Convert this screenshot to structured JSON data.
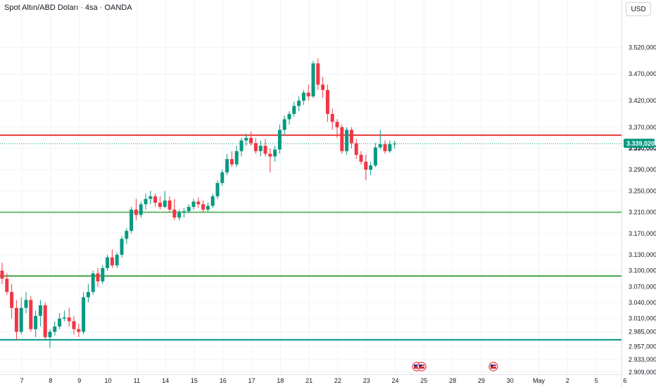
{
  "header": {
    "symbol_title": "Spot Altın/ABD Doları · 4sa · OANDA",
    "currency_button": "USD"
  },
  "colors": {
    "up": "#089981",
    "down": "#f23645",
    "resistance": "#e53935",
    "support_light": "#66bb6a",
    "support_mid": "#43a047",
    "support_dark": "#009688",
    "last_price": "#089981",
    "grid": "#f0f3fa"
  },
  "chart_data": {
    "type": "candlestick",
    "ylim": [
      2909,
      3559
    ],
    "y_axis_ticks": [
      {
        "value": 3520,
        "label": "3.520,000"
      },
      {
        "value": 3470,
        "label": "3.470,000"
      },
      {
        "value": 3420,
        "label": "3.420,000"
      },
      {
        "value": 3370,
        "label": "3.370,000"
      },
      {
        "value": 3330,
        "label": "3.330,000"
      },
      {
        "value": 3290,
        "label": "3.290,000"
      },
      {
        "value": 3250,
        "label": "3.250,000"
      },
      {
        "value": 3210,
        "label": "3.210,000"
      },
      {
        "value": 3170,
        "label": "3.170,000"
      },
      {
        "value": 3130,
        "label": "3.130,000"
      },
      {
        "value": 3100,
        "label": "3.100,000"
      },
      {
        "value": 3070,
        "label": "3.070,000"
      },
      {
        "value": 3040,
        "label": "3.040,000"
      },
      {
        "value": 3010,
        "label": "3.010,000"
      },
      {
        "value": 2985,
        "label": "2.985,000"
      },
      {
        "value": 2957,
        "label": "2.957,000"
      },
      {
        "value": 2933,
        "label": "2.933,000"
      },
      {
        "value": 2909,
        "label": "2.909,000"
      }
    ],
    "x_axis_labels": [
      {
        "bar": 4.5,
        "label": "7"
      },
      {
        "bar": 10.5,
        "label": "8"
      },
      {
        "bar": 16.5,
        "label": "9"
      },
      {
        "bar": 22.5,
        "label": "10"
      },
      {
        "bar": 28.5,
        "label": "11"
      },
      {
        "bar": 34.5,
        "label": "14"
      },
      {
        "bar": 40.5,
        "label": "15"
      },
      {
        "bar": 46.5,
        "label": "16"
      },
      {
        "bar": 52.5,
        "label": "17"
      },
      {
        "bar": 58.5,
        "label": "18"
      },
      {
        "bar": 64.5,
        "label": "21"
      },
      {
        "bar": 70.5,
        "label": "22"
      },
      {
        "bar": 76.5,
        "label": "23"
      },
      {
        "bar": 82.5,
        "label": "24"
      },
      {
        "bar": 88.5,
        "label": "25"
      },
      {
        "bar": 94.5,
        "label": "28"
      },
      {
        "bar": 100.5,
        "label": "29"
      },
      {
        "bar": 106.5,
        "label": "30"
      },
      {
        "bar": 112.5,
        "label": "May"
      },
      {
        "bar": 118.5,
        "label": "2"
      },
      {
        "bar": 124.5,
        "label": "5"
      },
      {
        "bar": 130.5,
        "label": "6"
      }
    ],
    "candles": [
      {
        "o": 3100,
        "h": 3115,
        "l": 3075,
        "c": 3085
      },
      {
        "o": 3085,
        "h": 3095,
        "l": 3055,
        "c": 3060
      },
      {
        "o": 3060,
        "h": 3075,
        "l": 3010,
        "c": 3030
      },
      {
        "o": 3030,
        "h": 3045,
        "l": 2970,
        "c": 2985
      },
      {
        "o": 2985,
        "h": 3050,
        "l": 2980,
        "c": 3030
      },
      {
        "o": 3030,
        "h": 3060,
        "l": 3020,
        "c": 3045
      },
      {
        "o": 3045,
        "h": 3052,
        "l": 2985,
        "c": 2990
      },
      {
        "o": 2990,
        "h": 3025,
        "l": 2975,
        "c": 3015
      },
      {
        "o": 3015,
        "h": 3045,
        "l": 2995,
        "c": 3035
      },
      {
        "o": 3035,
        "h": 3040,
        "l": 2970,
        "c": 2975
      },
      {
        "o": 2975,
        "h": 2990,
        "l": 2955,
        "c": 2985
      },
      {
        "o": 2985,
        "h": 3005,
        "l": 2978,
        "c": 2995
      },
      {
        "o": 2995,
        "h": 3020,
        "l": 2990,
        "c": 3010
      },
      {
        "o": 3010,
        "h": 3025,
        "l": 3005,
        "c": 3012
      },
      {
        "o": 3012,
        "h": 3030,
        "l": 2995,
        "c": 3005
      },
      {
        "o": 3005,
        "h": 3015,
        "l": 2980,
        "c": 2990
      },
      {
        "o": 2990,
        "h": 3000,
        "l": 2975,
        "c": 2985
      },
      {
        "o": 2985,
        "h": 3060,
        "l": 2980,
        "c": 3050
      },
      {
        "o": 3050,
        "h": 3075,
        "l": 3040,
        "c": 3060
      },
      {
        "o": 3060,
        "h": 3100,
        "l": 3055,
        "c": 3095
      },
      {
        "o": 3095,
        "h": 3105,
        "l": 3070,
        "c": 3080
      },
      {
        "o": 3080,
        "h": 3110,
        "l": 3075,
        "c": 3105
      },
      {
        "o": 3105,
        "h": 3130,
        "l": 3100,
        "c": 3125
      },
      {
        "o": 3125,
        "h": 3140,
        "l": 3105,
        "c": 3110
      },
      {
        "o": 3110,
        "h": 3135,
        "l": 3105,
        "c": 3130
      },
      {
        "o": 3130,
        "h": 3165,
        "l": 3125,
        "c": 3160
      },
      {
        "o": 3160,
        "h": 3180,
        "l": 3150,
        "c": 3175
      },
      {
        "o": 3175,
        "h": 3220,
        "l": 3170,
        "c": 3215
      },
      {
        "o": 3215,
        "h": 3235,
        "l": 3195,
        "c": 3205
      },
      {
        "o": 3205,
        "h": 3230,
        "l": 3200,
        "c": 3225
      },
      {
        "o": 3225,
        "h": 3245,
        "l": 3215,
        "c": 3235
      },
      {
        "o": 3235,
        "h": 3250,
        "l": 3225,
        "c": 3240
      },
      {
        "o": 3240,
        "h": 3245,
        "l": 3220,
        "c": 3228
      },
      {
        "o": 3228,
        "h": 3240,
        "l": 3215,
        "c": 3220
      },
      {
        "o": 3220,
        "h": 3250,
        "l": 3218,
        "c": 3232
      },
      {
        "o": 3232,
        "h": 3240,
        "l": 3210,
        "c": 3215
      },
      {
        "o": 3215,
        "h": 3235,
        "l": 3195,
        "c": 3200
      },
      {
        "o": 3200,
        "h": 3215,
        "l": 3195,
        "c": 3210
      },
      {
        "o": 3210,
        "h": 3218,
        "l": 3200,
        "c": 3212
      },
      {
        "o": 3212,
        "h": 3225,
        "l": 3208,
        "c": 3220
      },
      {
        "o": 3220,
        "h": 3235,
        "l": 3215,
        "c": 3230
      },
      {
        "o": 3230,
        "h": 3238,
        "l": 3218,
        "c": 3225
      },
      {
        "o": 3225,
        "h": 3232,
        "l": 3210,
        "c": 3215
      },
      {
        "o": 3215,
        "h": 3228,
        "l": 3210,
        "c": 3222
      },
      {
        "o": 3222,
        "h": 3245,
        "l": 3218,
        "c": 3240
      },
      {
        "o": 3240,
        "h": 3270,
        "l": 3235,
        "c": 3265
      },
      {
        "o": 3265,
        "h": 3290,
        "l": 3260,
        "c": 3285
      },
      {
        "o": 3285,
        "h": 3320,
        "l": 3280,
        "c": 3310
      },
      {
        "o": 3310,
        "h": 3325,
        "l": 3295,
        "c": 3300
      },
      {
        "o": 3300,
        "h": 3335,
        "l": 3295,
        "c": 3325
      },
      {
        "o": 3325,
        "h": 3350,
        "l": 3315,
        "c": 3345
      },
      {
        "o": 3345,
        "h": 3358,
        "l": 3335,
        "c": 3350
      },
      {
        "o": 3350,
        "h": 3362,
        "l": 3335,
        "c": 3340
      },
      {
        "o": 3340,
        "h": 3350,
        "l": 3320,
        "c": 3325
      },
      {
        "o": 3325,
        "h": 3345,
        "l": 3315,
        "c": 3335
      },
      {
        "o": 3335,
        "h": 3348,
        "l": 3315,
        "c": 3320
      },
      {
        "o": 3320,
        "h": 3330,
        "l": 3285,
        "c": 3315
      },
      {
        "o": 3315,
        "h": 3335,
        "l": 3305,
        "c": 3328
      },
      {
        "o": 3328,
        "h": 3375,
        "l": 3320,
        "c": 3365
      },
      {
        "o": 3365,
        "h": 3392,
        "l": 3355,
        "c": 3385
      },
      {
        "o": 3385,
        "h": 3400,
        "l": 3375,
        "c": 3395
      },
      {
        "o": 3395,
        "h": 3418,
        "l": 3390,
        "c": 3410
      },
      {
        "o": 3410,
        "h": 3428,
        "l": 3400,
        "c": 3420
      },
      {
        "o": 3420,
        "h": 3440,
        "l": 3412,
        "c": 3435
      },
      {
        "o": 3435,
        "h": 3450,
        "l": 3420,
        "c": 3428
      },
      {
        "o": 3428,
        "h": 3495,
        "l": 3425,
        "c": 3490
      },
      {
        "o": 3490,
        "h": 3500,
        "l": 3440,
        "c": 3450
      },
      {
        "o": 3450,
        "h": 3465,
        "l": 3425,
        "c": 3440
      },
      {
        "o": 3440,
        "h": 3450,
        "l": 3380,
        "c": 3395
      },
      {
        "o": 3395,
        "h": 3405,
        "l": 3365,
        "c": 3380
      },
      {
        "o": 3380,
        "h": 3385,
        "l": 3350,
        "c": 3370
      },
      {
        "o": 3370,
        "h": 3375,
        "l": 3320,
        "c": 3325
      },
      {
        "o": 3325,
        "h": 3370,
        "l": 3318,
        "c": 3365
      },
      {
        "o": 3365,
        "h": 3370,
        "l": 3330,
        "c": 3340
      },
      {
        "o": 3340,
        "h": 3348,
        "l": 3310,
        "c": 3318
      },
      {
        "o": 3318,
        "h": 3325,
        "l": 3300,
        "c": 3305
      },
      {
        "o": 3305,
        "h": 3318,
        "l": 3270,
        "c": 3290
      },
      {
        "o": 3290,
        "h": 3305,
        "l": 3280,
        "c": 3298
      },
      {
        "o": 3298,
        "h": 3340,
        "l": 3295,
        "c": 3332
      },
      {
        "o": 3332,
        "h": 3365,
        "l": 3328,
        "c": 3338
      },
      {
        "o": 3338,
        "h": 3345,
        "l": 3320,
        "c": 3325
      },
      {
        "o": 3325,
        "h": 3345,
        "l": 3322,
        "c": 3338
      },
      {
        "o": 3338,
        "h": 3345,
        "l": 3330,
        "c": 3339
      }
    ],
    "horizontal_levels": [
      {
        "value": 3355,
        "color_key": "resistance"
      },
      {
        "value": 3210,
        "color_key": "support_light"
      },
      {
        "value": 3090,
        "color_key": "support_mid"
      },
      {
        "value": 2970,
        "color_key": "support_dark"
      }
    ],
    "last_price": {
      "value": 3339.02,
      "label": "3.339,020",
      "hidden_label": "3.330,000"
    },
    "event_markers": [
      {
        "bar": 87,
        "count": 2,
        "icon": "us-flag-icon"
      },
      {
        "bar": 103,
        "count": 1,
        "icon": "us-flag-icon"
      }
    ]
  }
}
